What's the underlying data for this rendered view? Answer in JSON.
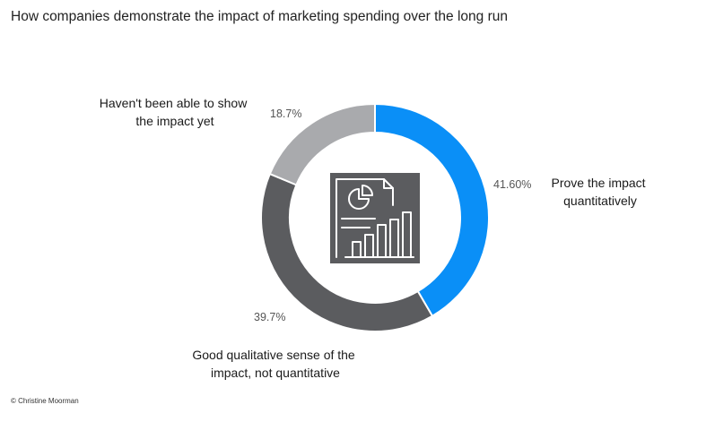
{
  "page": {
    "title": "How companies demonstrate the impact of marketing spending over the long run",
    "credit": "© Christine Moorman"
  },
  "colors": {
    "prove": "#0a8ff7",
    "qualitative": "#5b5c5f",
    "not_yet": "#a9aaad",
    "icon_bg": "#5b5c5f",
    "icon_line": "#ffffff"
  },
  "center_icon": "report-chart-icon",
  "chart_data": {
    "type": "pie",
    "title": "How companies demonstrate the impact of marketing spending over the long run",
    "start_angle_deg": 0,
    "direction": "clockwise",
    "slices": [
      {
        "key": "prove",
        "label_lines": [
          "Prove the impact",
          "quantitatively"
        ],
        "value": 41.6,
        "value_label": "41.60%"
      },
      {
        "key": "qualitative",
        "label_lines": [
          "Good qualitative sense of the",
          "impact, not quantitative"
        ],
        "value": 39.7,
        "value_label": "39.7%"
      },
      {
        "key": "not_yet",
        "label_lines": [
          "Haven't been able to show",
          "the impact yet"
        ],
        "value": 18.7,
        "value_label": "18.7%"
      }
    ]
  }
}
